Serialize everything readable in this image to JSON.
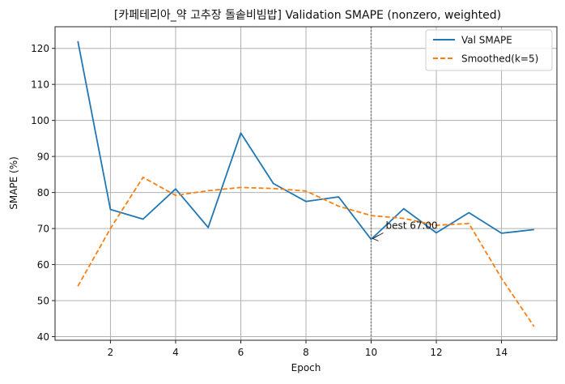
{
  "chart_data": {
    "type": "line",
    "title": "[카페테리아_약 고추장 돌솥비빔밥] Validation SMAPE (nonzero, weighted)",
    "xlabel": "Epoch",
    "ylabel": "SMAPE (%)",
    "x": [
      1,
      2,
      3,
      4,
      5,
      6,
      7,
      8,
      9,
      10,
      11,
      12,
      13,
      14,
      15
    ],
    "xlim": [
      0.3,
      15.7
    ],
    "ylim": [
      39,
      126
    ],
    "xticks": [
      2,
      4,
      6,
      8,
      10,
      12,
      14
    ],
    "yticks": [
      40,
      50,
      60,
      70,
      80,
      90,
      100,
      110,
      120
    ],
    "grid": true,
    "legend_position": "top-right",
    "series": [
      {
        "name": "Val SMAPE",
        "color": "#1f77b4",
        "style": "solid",
        "values": [
          122.0,
          75.3,
          72.6,
          81.0,
          70.3,
          96.5,
          82.5,
          77.5,
          78.8,
          67.0,
          75.5,
          68.8,
          74.4,
          68.7,
          69.7
        ]
      },
      {
        "name": "Smoothed(k=5)",
        "color": "#ff7f0e",
        "style": "dashed",
        "values": [
          54.0,
          70.0,
          84.2,
          79.2,
          80.5,
          81.4,
          81.1,
          80.4,
          76.2,
          73.6,
          72.8,
          70.9,
          71.4,
          56.2,
          42.8
        ]
      }
    ],
    "vline": {
      "x": 10,
      "color": "#808080",
      "style": "dotted"
    },
    "annotation": {
      "text": "best 67.00",
      "x": 10,
      "y": 67.0
    }
  }
}
